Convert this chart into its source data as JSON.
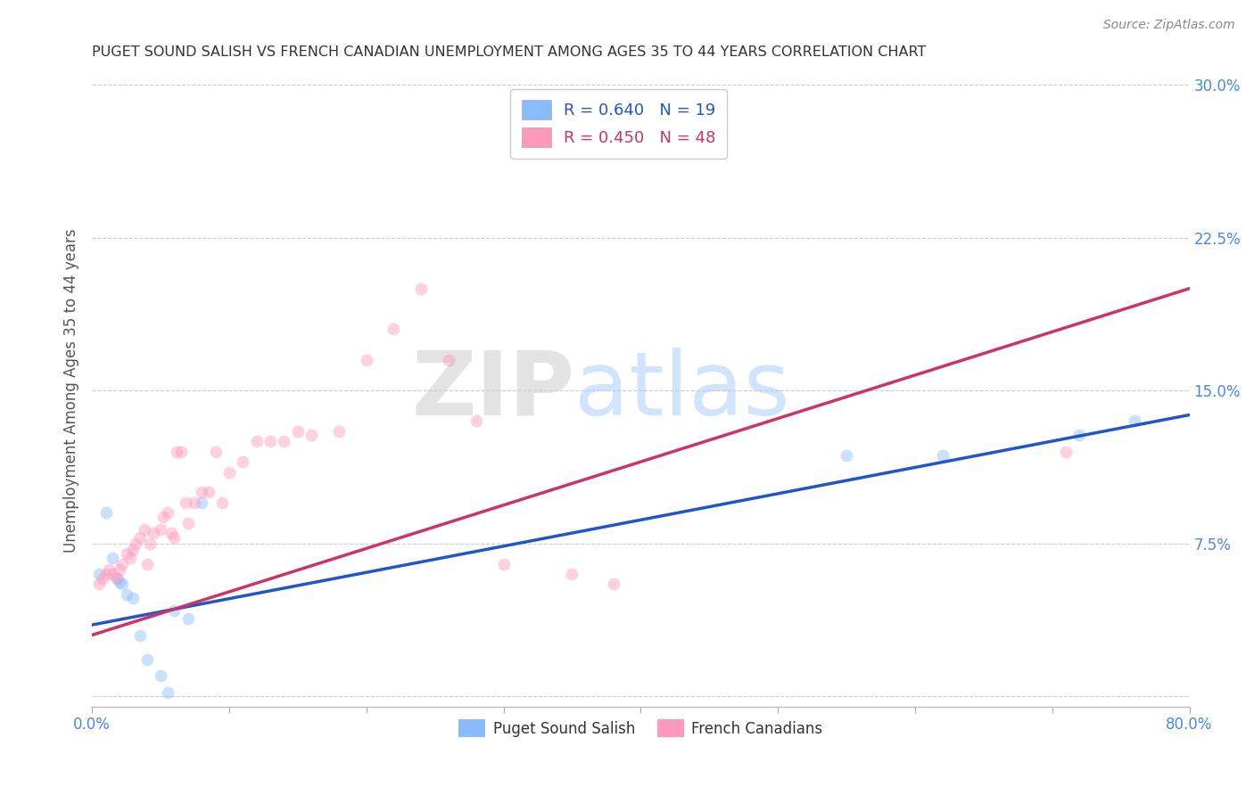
{
  "title": "PUGET SOUND SALISH VS FRENCH CANADIAN UNEMPLOYMENT AMONG AGES 35 TO 44 YEARS CORRELATION CHART",
  "source": "Source: ZipAtlas.com",
  "ylabel_left": "Unemployment Among Ages 35 to 44 years",
  "legend_label1": "Puget Sound Salish",
  "legend_label2": "French Canadians",
  "R1": 0.64,
  "N1": 19,
  "R2": 0.45,
  "N2": 48,
  "color1": "#88BBFF",
  "color2": "#FF99BB",
  "trendline_color1": "#2255CC",
  "trendline_color2": "#CC3366",
  "xlim": [
    0.0,
    0.8
  ],
  "ylim": [
    -0.005,
    0.305
  ],
  "xticks": [
    0.0,
    0.1,
    0.2,
    0.3,
    0.4,
    0.5,
    0.6,
    0.7,
    0.8
  ],
  "yticks_right": [
    0.0,
    0.075,
    0.15,
    0.225,
    0.3
  ],
  "ytick_labels_right": [
    "",
    "7.5%",
    "15.0%",
    "22.5%",
    "30.0%"
  ],
  "xtick_labels_show": [
    "0.0%",
    "",
    "",
    "",
    "",
    "",
    "",
    "",
    "80.0%"
  ],
  "watermark_zip": "ZIP",
  "watermark_atlas": "atlas",
  "background_color": "#FFFFFF",
  "grid_color": "#CCCCCC",
  "title_color": "#333333",
  "axis_label_color": "#555555",
  "tick_color_right": "#4488EE",
  "tick_color_bottom": "#4488EE",
  "marker_size": 100,
  "marker_alpha": 0.45,
  "scatter1_x": [
    0.005,
    0.01,
    0.015,
    0.018,
    0.02,
    0.022,
    0.025,
    0.03,
    0.035,
    0.04,
    0.05,
    0.055,
    0.06,
    0.07,
    0.08,
    0.55,
    0.62,
    0.72,
    0.76
  ],
  "scatter1_y": [
    0.06,
    0.09,
    0.068,
    0.058,
    0.056,
    0.055,
    0.05,
    0.048,
    0.03,
    0.018,
    0.01,
    0.002,
    0.042,
    0.038,
    0.095,
    0.118,
    0.118,
    0.128,
    0.135
  ],
  "scatter2_x": [
    0.005,
    0.008,
    0.01,
    0.012,
    0.015,
    0.018,
    0.02,
    0.022,
    0.025,
    0.028,
    0.03,
    0.032,
    0.035,
    0.038,
    0.04,
    0.042,
    0.045,
    0.05,
    0.052,
    0.055,
    0.058,
    0.06,
    0.062,
    0.065,
    0.068,
    0.07,
    0.075,
    0.08,
    0.085,
    0.09,
    0.095,
    0.1,
    0.11,
    0.12,
    0.13,
    0.14,
    0.15,
    0.16,
    0.18,
    0.2,
    0.22,
    0.24,
    0.26,
    0.28,
    0.3,
    0.35,
    0.38,
    0.71
  ],
  "scatter2_y": [
    0.055,
    0.058,
    0.06,
    0.062,
    0.06,
    0.058,
    0.062,
    0.065,
    0.07,
    0.068,
    0.072,
    0.075,
    0.078,
    0.082,
    0.065,
    0.075,
    0.08,
    0.082,
    0.088,
    0.09,
    0.08,
    0.078,
    0.12,
    0.12,
    0.095,
    0.085,
    0.095,
    0.1,
    0.1,
    0.12,
    0.095,
    0.11,
    0.115,
    0.125,
    0.125,
    0.125,
    0.13,
    0.128,
    0.13,
    0.165,
    0.18,
    0.2,
    0.165,
    0.135,
    0.065,
    0.06,
    0.055,
    0.12
  ],
  "trendline1_x0": 0.0,
  "trendline1_x1": 0.8,
  "trendline1_y0": 0.035,
  "trendline1_y1": 0.138,
  "trendline2_x0": 0.0,
  "trendline2_x1": 0.8,
  "trendline2_y0": 0.03,
  "trendline2_y1": 0.2
}
